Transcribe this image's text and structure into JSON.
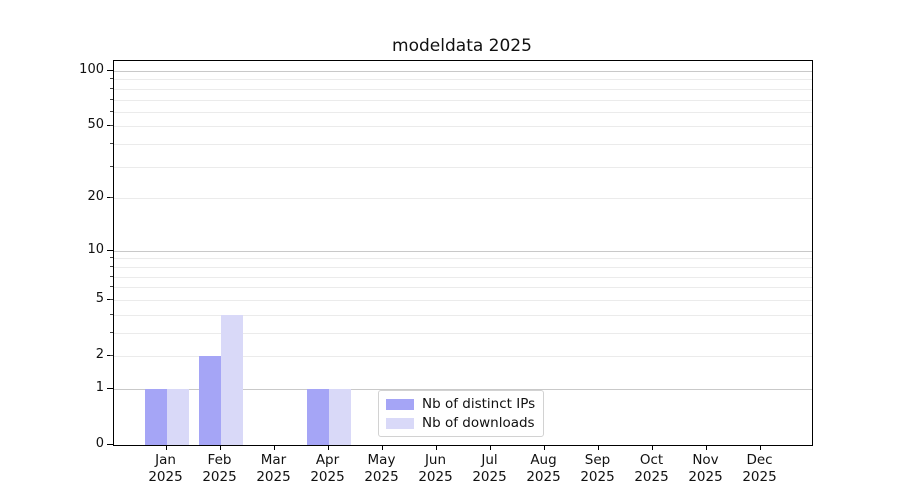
{
  "title": "modeldata 2025",
  "chart_data": {
    "type": "bar",
    "title": "modeldata 2025",
    "categories": [
      {
        "month": "Jan",
        "year": "2025"
      },
      {
        "month": "Feb",
        "year": "2025"
      },
      {
        "month": "Mar",
        "year": "2025"
      },
      {
        "month": "Apr",
        "year": "2025"
      },
      {
        "month": "May",
        "year": "2025"
      },
      {
        "month": "Jun",
        "year": "2025"
      },
      {
        "month": "Jul",
        "year": "2025"
      },
      {
        "month": "Aug",
        "year": "2025"
      },
      {
        "month": "Sep",
        "year": "2025"
      },
      {
        "month": "Oct",
        "year": "2025"
      },
      {
        "month": "Nov",
        "year": "2025"
      },
      {
        "month": "Dec",
        "year": "2025"
      }
    ],
    "series": [
      {
        "name": "Nb of distinct IPs",
        "color": "#a5a5f6",
        "values": [
          1,
          2,
          0,
          1,
          0,
          0,
          0,
          0,
          0,
          0,
          0,
          0
        ]
      },
      {
        "name": "Nb of downloads",
        "color": "#d9d9f8",
        "values": [
          1,
          4,
          0,
          1,
          0,
          0,
          0,
          0,
          0,
          0,
          0,
          0
        ]
      }
    ],
    "y_axis": {
      "scale": "log1p",
      "range": [
        0,
        100
      ],
      "tick_labels": [
        100,
        50,
        20,
        10,
        5,
        2,
        1,
        0
      ],
      "gridlines_major": [
        1,
        10,
        100
      ],
      "gridlines_minor": [
        2,
        3,
        4,
        5,
        6,
        7,
        8,
        9,
        20,
        30,
        40,
        50,
        60,
        70,
        80,
        90
      ]
    },
    "legend_position": "lower center-right inside plot",
    "grid": "horizontal only",
    "colors": {
      "spine": "#000000",
      "grid_major": "#c9c9c9",
      "grid_minor": "#ebebeb",
      "background": "#ffffff"
    }
  }
}
